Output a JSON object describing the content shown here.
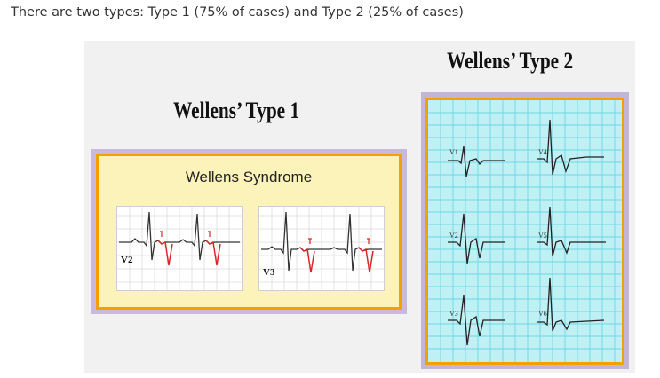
{
  "intro_text": "There are two types: Type 1 (75% of cases) and Type 2 (25% of cases)",
  "type1": {
    "title": "Wellens’ Type 1",
    "panel_title": "Wellens Syndrome",
    "leads": [
      "V2",
      "V3"
    ]
  },
  "type2": {
    "title": "Wellens’ Type 2",
    "leads": [
      "V1",
      "V4",
      "V2",
      "V5",
      "V3",
      "V6"
    ]
  },
  "colors": {
    "panel1_bg": "#fbf3ba",
    "panel2_bg": "#bff0f3",
    "border_orange": "#f3a100",
    "ecg_red": "#d9262b"
  }
}
